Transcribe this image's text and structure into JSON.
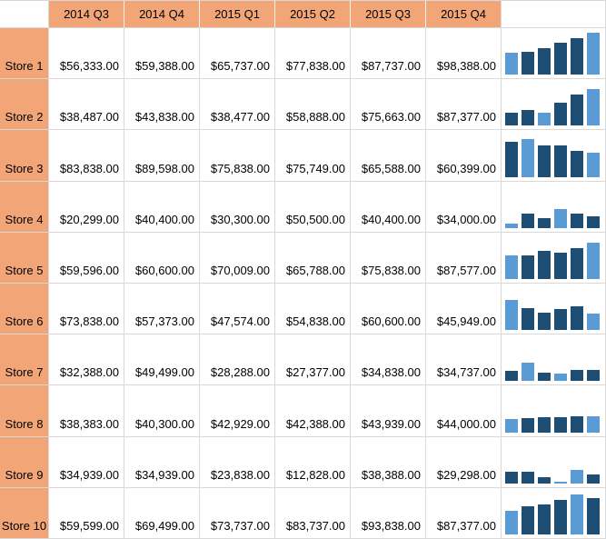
{
  "sheet": {
    "corner_label": "",
    "columns": [
      "2014 Q3",
      "2014 Q4",
      "2015 Q1",
      "2015 Q2",
      "2015 Q3",
      "2015 Q4"
    ],
    "rows": [
      {
        "label": "Store 1",
        "values": [
          "$56,333.00",
          "$59,388.00",
          "$65,737.00",
          "$77,838.00",
          "$87,737.00",
          "$98,388.00"
        ],
        "numbers": [
          56333,
          59388,
          65737,
          77838,
          87737,
          98388
        ]
      },
      {
        "label": "Store 2",
        "values": [
          "$38,487.00",
          "$43,838.00",
          "$38,477.00",
          "$58,888.00",
          "$75,663.00",
          "$87,377.00"
        ],
        "numbers": [
          38487,
          43838,
          38477,
          58888,
          75663,
          87377
        ]
      },
      {
        "label": "Store 3",
        "values": [
          "$83,838.00",
          "$89,598.00",
          "$75,838.00",
          "$75,749.00",
          "$65,588.00",
          "$60,399.00"
        ],
        "numbers": [
          83838,
          89598,
          75838,
          75749,
          65588,
          60399
        ]
      },
      {
        "label": "Store 4",
        "values": [
          "$20,299.00",
          "$40,400.00",
          "$30,300.00",
          "$50,500.00",
          "$40,400.00",
          "$34,000.00"
        ],
        "numbers": [
          20299,
          40400,
          30300,
          50500,
          40400,
          34000
        ]
      },
      {
        "label": "Store 5",
        "values": [
          "$59,596.00",
          "$60,600.00",
          "$70,009.00",
          "$65,788.00",
          "$75,838.00",
          "$87,577.00"
        ],
        "numbers": [
          59596,
          60600,
          70009,
          65788,
          75838,
          87577
        ]
      },
      {
        "label": "Store 6",
        "values": [
          "$73,838.00",
          "$57,373.00",
          "$47,574.00",
          "$54,838.00",
          "$60,600.00",
          "$45,949.00"
        ],
        "numbers": [
          73838,
          57373,
          47574,
          54838,
          60600,
          45949
        ]
      },
      {
        "label": "Store 7",
        "values": [
          "$32,388.00",
          "$49,499.00",
          "$28,288.00",
          "$27,377.00",
          "$34,838.00",
          "$34,737.00"
        ],
        "numbers": [
          32388,
          49499,
          28288,
          27377,
          34838,
          34737
        ]
      },
      {
        "label": "Store 8",
        "values": [
          "$38,383.00",
          "$40,300.00",
          "$42,929.00",
          "$42,388.00",
          "$43,939.00",
          "$44,000.00"
        ],
        "numbers": [
          38383,
          40300,
          42929,
          42388,
          43939,
          44000
        ]
      },
      {
        "label": "Store 9",
        "values": [
          "$34,939.00",
          "$34,939.00",
          "$23,838.00",
          "$12,828.00",
          "$38,388.00",
          "$29,298.00"
        ],
        "numbers": [
          34939,
          34939,
          23838,
          12828,
          38388,
          29298
        ]
      },
      {
        "label": "Store 10",
        "values": [
          "$59,599.00",
          "$69,499.00",
          "$73,737.00",
          "$83,737.00",
          "$93,838.00",
          "$87,377.00"
        ],
        "numbers": [
          59599,
          69499,
          73737,
          83737,
          93838,
          87377
        ]
      }
    ]
  },
  "chart_data": {
    "type": "bar",
    "title": "Per-store quarterly sales column sparklines",
    "categories": [
      "2014 Q3",
      "2014 Q4",
      "2015 Q1",
      "2015 Q2",
      "2015 Q3",
      "2015 Q4"
    ],
    "series": [
      {
        "name": "Store 1",
        "values": [
          56333,
          59388,
          65737,
          77838,
          87737,
          98388
        ]
      },
      {
        "name": "Store 2",
        "values": [
          38487,
          43838,
          38477,
          58888,
          75663,
          87377
        ]
      },
      {
        "name": "Store 3",
        "values": [
          83838,
          89598,
          75838,
          75749,
          65588,
          60399
        ]
      },
      {
        "name": "Store 4",
        "values": [
          20299,
          40400,
          30300,
          50500,
          40400,
          34000
        ]
      },
      {
        "name": "Store 5",
        "values": [
          59596,
          60600,
          70009,
          65788,
          75838,
          87577
        ]
      },
      {
        "name": "Store 6",
        "values": [
          73838,
          57373,
          47574,
          54838,
          60600,
          45949
        ]
      },
      {
        "name": "Store 7",
        "values": [
          32388,
          49499,
          28288,
          27377,
          34838,
          34737
        ]
      },
      {
        "name": "Store 8",
        "values": [
          38383,
          40300,
          42929,
          42388,
          43939,
          44000
        ]
      },
      {
        "name": "Store 9",
        "values": [
          34939,
          34939,
          23838,
          12828,
          38388,
          29298
        ]
      },
      {
        "name": "Store 10",
        "values": [
          59599,
          69499,
          73737,
          83737,
          93838,
          87377
        ]
      }
    ],
    "ylim": [
      10600,
      98388
    ],
    "legend_position": "none",
    "grid": false
  },
  "sparklines": {
    "style": "column",
    "axis_min": 10600,
    "axis_max": 98388,
    "bar_color": "#1f4e74",
    "high_low_color": "#5b9bd5"
  },
  "colors": {
    "header_bg": "#f2a678",
    "row_label_bg": "#f2a678",
    "grid_line": "#d9d9d9",
    "cell_bg": "#ffffff",
    "text": "#000000"
  }
}
